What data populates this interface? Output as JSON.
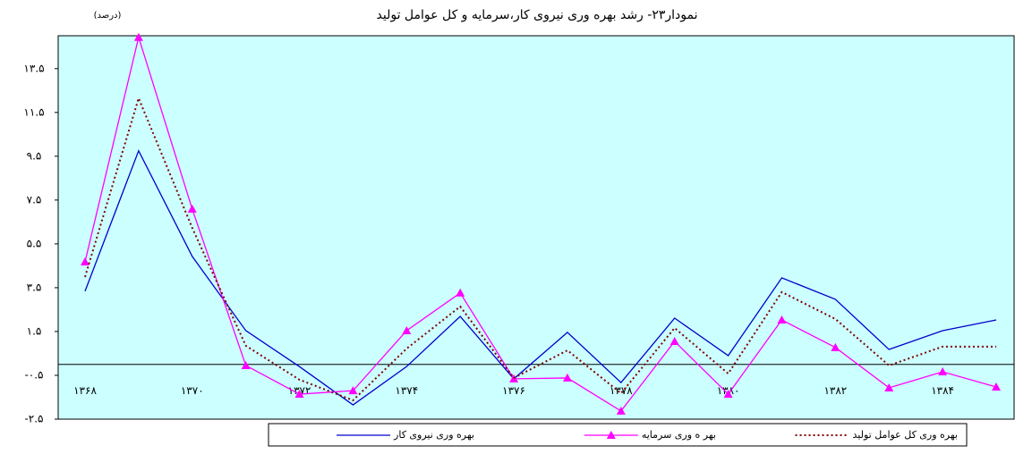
{
  "chart_data": {
    "type": "line",
    "title": "نمودار۲۳- رشد بهره وری نیروی کار،سرمایه و کل عوامل تولید",
    "y_unit": "(درصد)",
    "categories": [
      "۱۳۶۸",
      null,
      "۱۳۷۰",
      null,
      "۱۳۷۲",
      null,
      "۱۳۷۴",
      null,
      "۱۳۷۶",
      null,
      "۱۳۷۸",
      null,
      "۱۳۸۰",
      null,
      "۱۳۸۲",
      null,
      "۱۳۸۴",
      null
    ],
    "ylim": [
      -2.5,
      15
    ],
    "yticks": [
      {
        "value": -2.5,
        "label": "-۲.۵"
      },
      {
        "value": -0.5,
        "label": "-۰.۵"
      },
      {
        "value": 1.5,
        "label": "۱.۵"
      },
      {
        "value": 3.5,
        "label": "۳.۵"
      },
      {
        "value": 5.5,
        "label": "۵.۵"
      },
      {
        "value": 7.5,
        "label": "۷.۵"
      },
      {
        "value": 9.5,
        "label": "۹.۵"
      },
      {
        "value": 11.5,
        "label": "۱۱.۵"
      },
      {
        "value": 13.5,
        "label": "۱۳.۵"
      }
    ],
    "grid": false,
    "legend": "bottom",
    "series": [
      {
        "name": "بهره وری نیروی کار",
        "color": "#0000cc",
        "style": "solid",
        "values": [
          3.34,
          9.75,
          4.93,
          1.54,
          -0.1,
          -1.85,
          -0.1,
          2.19,
          -0.66,
          1.46,
          -0.83,
          2.11,
          0.4,
          3.95,
          2.97,
          0.68,
          1.54,
          2.03
        ]
      },
      {
        "name": "بهر ه وری سرمایه",
        "color": "#ff00ff",
        "style": "solid",
        "marker": "triangle",
        "values": [
          4.68,
          14.93,
          7.09,
          -0.05,
          -1.36,
          -1.2,
          1.54,
          3.26,
          -0.66,
          -0.62,
          -2.13,
          1.05,
          -1.36,
          2.03,
          0.77,
          -1.07,
          -0.34,
          -1.03
        ]
      },
      {
        "name": "بهره وری کل عوامل تولید",
        "color": "#800000",
        "style": "dotted",
        "values": [
          3.99,
          12.15,
          6.23,
          0.85,
          -0.7,
          -1.64,
          0.72,
          2.64,
          -0.62,
          0.64,
          -1.32,
          1.66,
          -0.42,
          3.3,
          2.07,
          -0.05,
          0.81,
          0.81
        ]
      }
    ]
  }
}
